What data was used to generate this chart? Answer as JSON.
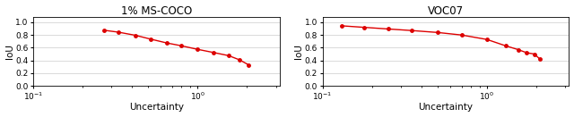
{
  "coco_title": "1% MS-COCO",
  "voc_title": "VOC07",
  "xlabel": "Uncertainty",
  "ylabel": "IoU",
  "line_color": "#dd0000",
  "marker": "o",
  "markersize": 2.5,
  "linewidth": 1.0,
  "coco_x": [
    0.27,
    0.33,
    0.42,
    0.52,
    0.65,
    0.8,
    1.0,
    1.25,
    1.55,
    1.8,
    2.05
  ],
  "coco_y": [
    0.875,
    0.845,
    0.795,
    0.735,
    0.675,
    0.63,
    0.575,
    0.525,
    0.475,
    0.41,
    0.33
  ],
  "voc_x": [
    0.13,
    0.18,
    0.25,
    0.35,
    0.5,
    0.7,
    1.0,
    1.3,
    1.55,
    1.75,
    1.95,
    2.1
  ],
  "voc_y": [
    0.945,
    0.92,
    0.895,
    0.87,
    0.84,
    0.8,
    0.73,
    0.63,
    0.57,
    0.52,
    0.5,
    0.42
  ],
  "xlim": [
    0.1,
    3.16
  ],
  "ylim": [
    0.0,
    1.09
  ],
  "yticks": [
    0.0,
    0.2,
    0.4,
    0.6,
    0.8,
    1.0
  ],
  "xticks": [
    0.1,
    1.0
  ],
  "xticklabels": [
    "$10^{-1}$",
    "$10^{0}$"
  ],
  "bg_color": "#ffffff",
  "title_fontsize": 8.5,
  "label_fontsize": 7.5,
  "tick_fontsize": 6.5
}
